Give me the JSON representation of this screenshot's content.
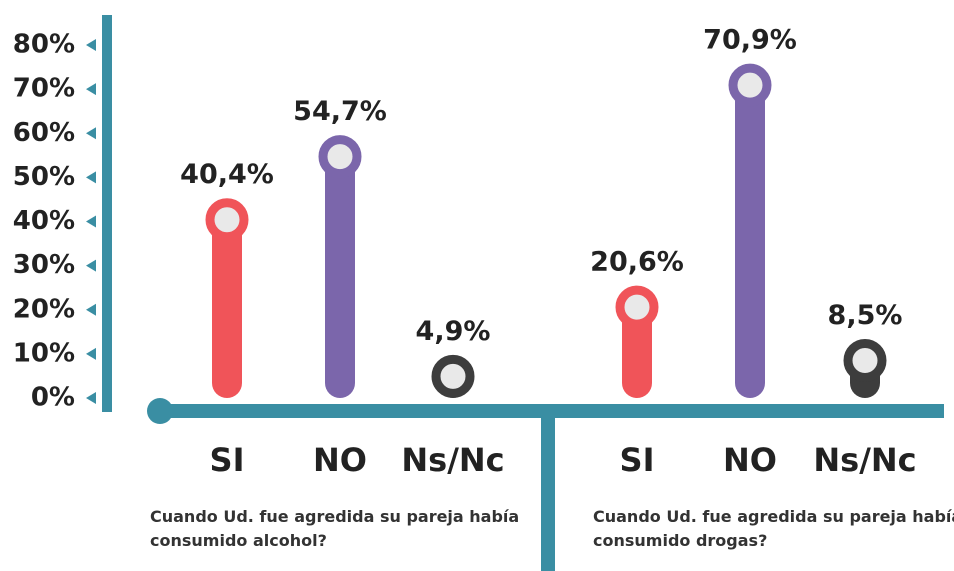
{
  "chart_data": [
    {
      "type": "bar",
      "categories": [
        "SI",
        "NO",
        "Ns/Nc"
      ],
      "values": [
        40.4,
        54.7,
        4.9
      ],
      "value_labels": [
        "40,4%",
        "54,7%",
        "4,9%"
      ],
      "colors": [
        "#f05459",
        "#7b66ab",
        "#3d3d3d"
      ],
      "caption": "Cuando Ud. fue agredida su pareja había consumido alcohol?",
      "ylim": [
        0,
        80
      ],
      "yticks": [
        {
          "value": 0,
          "label": "0%"
        },
        {
          "value": 10,
          "label": "10%"
        },
        {
          "value": 20,
          "label": "20%"
        },
        {
          "value": 30,
          "label": "30%"
        },
        {
          "value": 40,
          "label": "40%"
        },
        {
          "value": 50,
          "label": "50%"
        },
        {
          "value": 60,
          "label": "60%"
        },
        {
          "value": 70,
          "label": "70%"
        },
        {
          "value": 80,
          "label": "80%"
        }
      ]
    },
    {
      "type": "bar",
      "categories": [
        "SI",
        "NO",
        "Ns/Nc"
      ],
      "values": [
        20.6,
        70.9,
        8.5
      ],
      "value_labels": [
        "20,6%",
        "70,9%",
        "8,5%"
      ],
      "colors": [
        "#f05459",
        "#7b66ab",
        "#3d3d3d"
      ],
      "caption": "Cuando Ud. fue agredida su pareja había consumido drogas?",
      "ylim": [
        0,
        80
      ]
    }
  ]
}
